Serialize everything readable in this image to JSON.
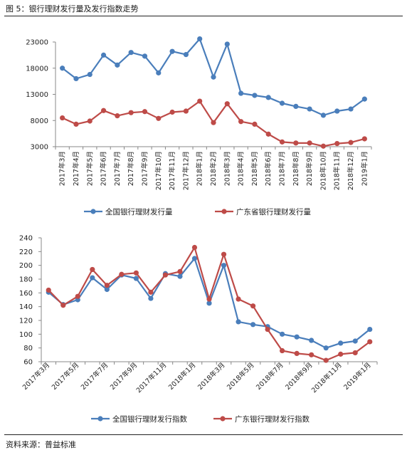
{
  "figure_title": "图 5：银行理财发行量及发行指数走势",
  "source_label": "资料来源：普益标准",
  "colors": {
    "series_blue": "#4a7ebb",
    "series_red": "#be4b48"
  },
  "chart_data": [
    {
      "type": "line",
      "title": "",
      "ylim": [
        3000,
        23000
      ],
      "yticks": [
        3000,
        8000,
        13000,
        18000,
        23000
      ],
      "grid": false,
      "legend_position": "bottom",
      "categories": [
        "2017年3月",
        "2017年4月",
        "2017年5月",
        "2017年6月",
        "2017年7月",
        "2017年8月",
        "2017年9月",
        "2017年10月",
        "2017年11月",
        "2017年12月",
        "2018年1月",
        "2018年2月",
        "2018年3月",
        "2018年4月",
        "2018年5月",
        "2018年6月",
        "2018年7月",
        "2018年8月",
        "2018年9月",
        "2018年10月",
        "2018年11月",
        "2018年12月",
        "2019年1月"
      ],
      "series": [
        {
          "name": "全国银行理财发行量",
          "color": "#4a7ebb",
          "values": [
            18000,
            16000,
            16800,
            20500,
            18600,
            21000,
            20300,
            17100,
            21200,
            20600,
            23600,
            16300,
            22600,
            13200,
            12800,
            12400,
            11300,
            10700,
            10200,
            9000,
            9800,
            10200,
            12100
          ]
        },
        {
          "name": "广东省银行理财发行量",
          "color": "#be4b48",
          "values": [
            8500,
            7300,
            7900,
            9900,
            8900,
            9500,
            9700,
            8400,
            9600,
            9800,
            11700,
            7600,
            11200,
            7800,
            7300,
            5400,
            3900,
            3700,
            3700,
            3100,
            3600,
            3800,
            4500
          ]
        }
      ]
    },
    {
      "type": "line",
      "title": "",
      "ylim": [
        60,
        240
      ],
      "yticks": [
        60,
        80,
        100,
        120,
        140,
        160,
        180,
        200,
        220,
        240
      ],
      "grid": false,
      "legend_position": "bottom",
      "categories": [
        "2017年3月",
        "2017年4月",
        "2017年5月",
        "2017年6月",
        "2017年7月",
        "2017年8月",
        "2017年9月",
        "2017年10月",
        "2017年11月",
        "2017年12月",
        "2018年1月",
        "2018年2月",
        "2018年3月",
        "2018年4月",
        "2018年5月",
        "2018年6月",
        "2018年7月",
        "2018年8月",
        "2018年9月",
        "2018年10月",
        "2018年11月",
        "2018年12月",
        "2019年1月"
      ],
      "x_tick_labels": [
        "2017年3月",
        "",
        "2017年5月",
        "",
        "2017年7月",
        "",
        "2017年9月",
        "",
        "2017年11月",
        "",
        "2018年1月",
        "",
        "2018年3月",
        "",
        "2018年5月",
        "",
        "2018年7月",
        "",
        "2018年9月",
        "",
        "2018年11月",
        "",
        "2019年1月"
      ],
      "series": [
        {
          "name": "全国银行理财发行指数",
          "color": "#4a7ebb",
          "values": [
            161,
            143,
            150,
            182,
            165,
            186,
            181,
            152,
            188,
            184,
            210,
            145,
            200,
            118,
            114,
            111,
            100,
            96,
            91,
            80,
            87,
            90,
            107
          ]
        },
        {
          "name": "广东银行理财发行指数",
          "color": "#be4b48",
          "values": [
            164,
            142,
            155,
            194,
            171,
            187,
            189,
            161,
            186,
            191,
            226,
            151,
            216,
            151,
            141,
            107,
            76,
            72,
            70,
            62,
            71,
            73,
            89
          ]
        }
      ]
    }
  ]
}
